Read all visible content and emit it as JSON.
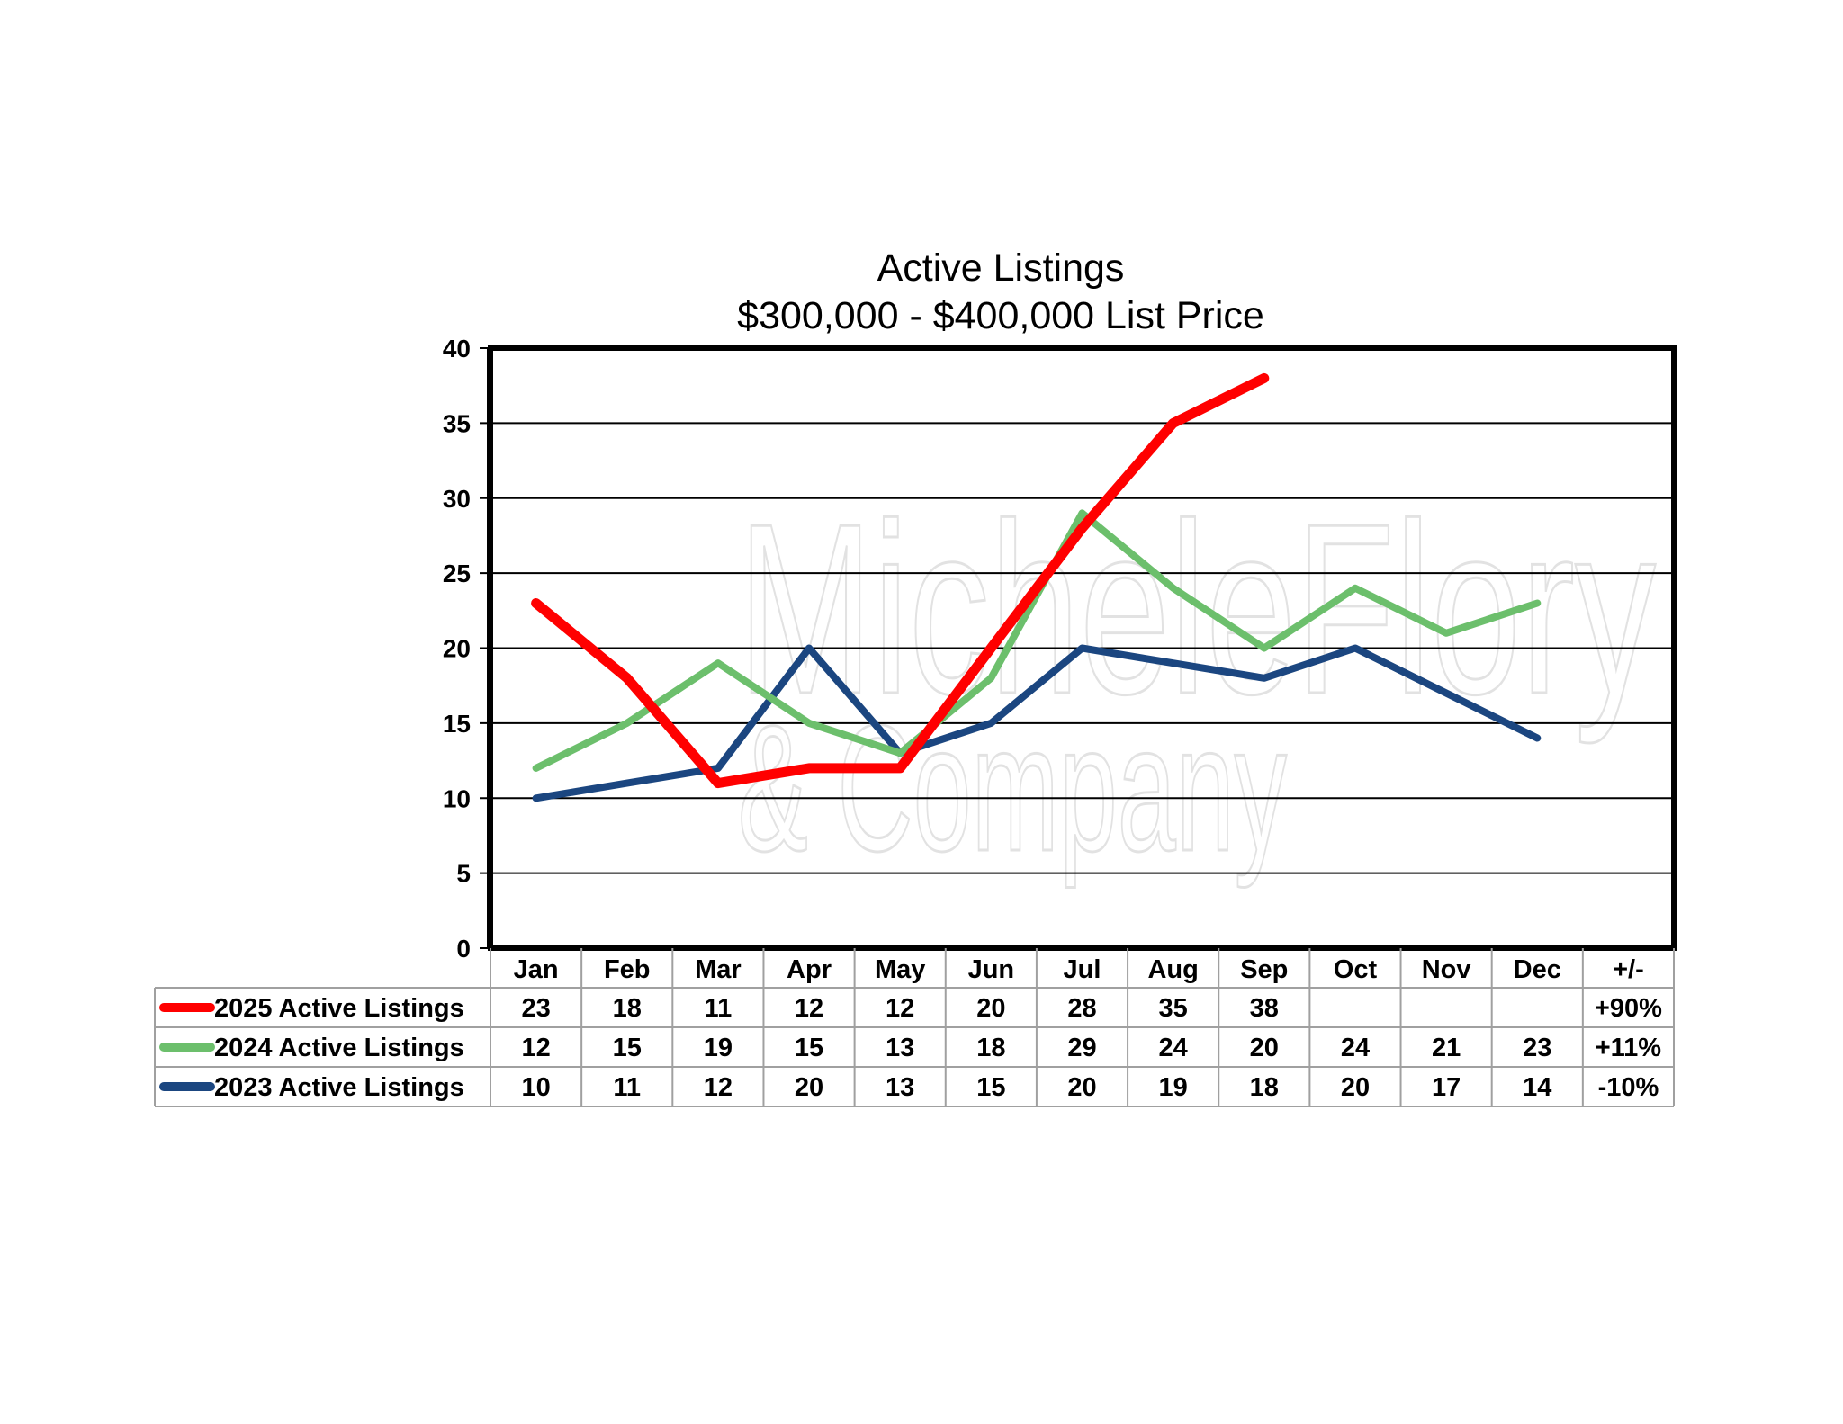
{
  "chart_data": {
    "type": "line",
    "title": "Active Listings",
    "subtitle": "$300,000 - $400,000 List Price",
    "categories": [
      "Jan",
      "Feb",
      "Mar",
      "Apr",
      "May",
      "Jun",
      "Jul",
      "Aug",
      "Sep",
      "Oct",
      "Nov",
      "Dec"
    ],
    "change_header": "+/-",
    "ylim": [
      0,
      40
    ],
    "yticks": [
      0,
      5,
      10,
      15,
      20,
      25,
      30,
      35,
      40
    ],
    "grid": true,
    "legend": "table-below",
    "series": [
      {
        "name": "2025 Active Listings",
        "color": "#ff0000",
        "values": [
          23,
          18,
          11,
          12,
          12,
          20,
          28,
          35,
          38,
          null,
          null,
          null
        ],
        "change": "+90%"
      },
      {
        "name": "2024 Active Listings",
        "color": "#6cbf6c",
        "values": [
          12,
          15,
          19,
          15,
          13,
          18,
          29,
          24,
          20,
          24,
          21,
          23
        ],
        "change": "+11%"
      },
      {
        "name": "2023 Active Listings",
        "color": "#1b4680",
        "values": [
          10,
          11,
          12,
          20,
          13,
          15,
          20,
          19,
          18,
          20,
          17,
          14
        ],
        "change": "-10%"
      }
    ]
  },
  "watermark": {
    "line1": "MicheleFlory",
    "line2": "& Company"
  }
}
